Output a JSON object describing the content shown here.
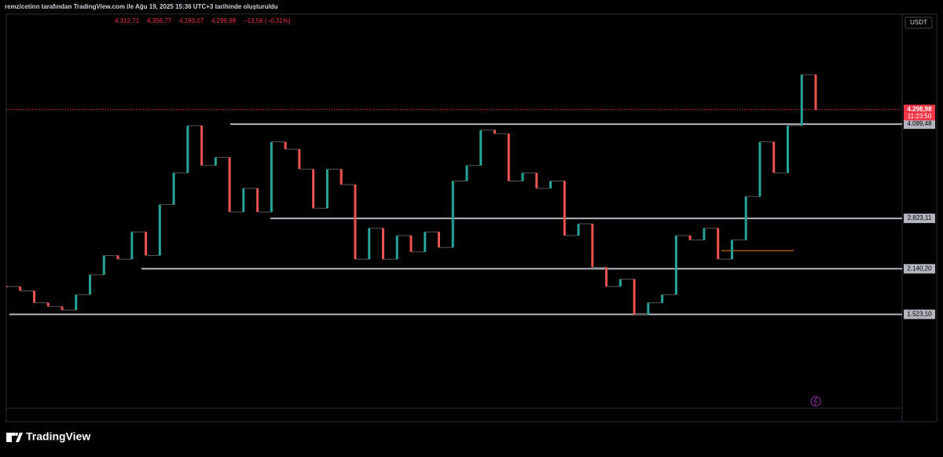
{
  "header": {
    "attribution": "remzicetinn tarafından TradingView.com ile Ağu 19, 2025 15:36 UTC+3 tarihinde oluşturuldu",
    "ohlc": [
      "4.312,71",
      "4.356,77",
      "4.193,07",
      "4.298,98",
      "−13,56 (−0,31%)"
    ]
  },
  "chart_data": {
    "type": "line",
    "currency": "USDT",
    "ylim": [
      250,
      5590
    ],
    "values": [
      1900,
      1840,
      1680,
      1630,
      1580,
      1790,
      2060,
      2320,
      2270,
      2640,
      2320,
      3010,
      3440,
      4080,
      3540,
      3650,
      2910,
      3230,
      2910,
      3860,
      3760,
      3490,
      2960,
      3490,
      3280,
      2270,
      2690,
      2270,
      2590,
      2370,
      2640,
      2430,
      3330,
      3540,
      4020,
      3970,
      3330,
      3440,
      3230,
      3330,
      2590,
      2750,
      2160,
      1900,
      2000,
      1520,
      1680,
      1790,
      2590,
      2530,
      2690,
      2270,
      2530,
      3120,
      3860,
      3440,
      4080,
      4770,
      4290
    ],
    "up_color": "#26a69a",
    "down_color": "#ef5350",
    "levels": [
      {
        "value": 4099.48,
        "label": "4.099,48"
      },
      {
        "value": 2823.11,
        "label": "2.823,11"
      },
      {
        "value": 2140.2,
        "label": "2.140,20"
      },
      {
        "value": 1523.1,
        "label": "1.523,10"
      }
    ],
    "level_color": "#b2b5be",
    "support_line": {
      "value": 2385,
      "color": "#f57c00"
    },
    "last_price": {
      "value": 4298.98,
      "label": "4.298,98",
      "countdown": "11:23:50",
      "color": "#f23645"
    }
  },
  "footer": {
    "brand": "TradingView"
  }
}
